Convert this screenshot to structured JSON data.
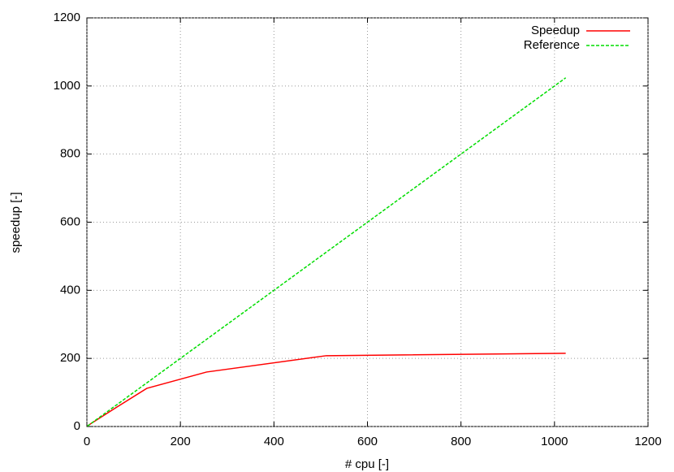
{
  "chart_data": {
    "type": "line",
    "x_label": "# cpu [-]",
    "y_label": "speedup [-]",
    "x": [
      1,
      2,
      4,
      8,
      16,
      32,
      64,
      128,
      256,
      512,
      1024
    ],
    "series": [
      {
        "name": "Speedup",
        "color": "#ff0000",
        "dashed": false,
        "values": [
          1,
          2,
          4,
          8,
          15,
          29,
          57,
          112,
          160,
          208,
          215
        ]
      },
      {
        "name": "Reference",
        "color": "#00dd00",
        "dashed": true,
        "values": [
          1,
          2,
          4,
          8,
          16,
          32,
          64,
          128,
          256,
          512,
          1024
        ]
      }
    ],
    "xlim": [
      0,
      1200
    ],
    "xticks": [
      0,
      200,
      400,
      600,
      800,
      1000,
      1200
    ],
    "ylim": [
      0,
      1200
    ],
    "yticks": [
      0,
      200,
      400,
      600,
      800,
      1000,
      1200
    ],
    "grid": true,
    "legend": "top right"
  }
}
